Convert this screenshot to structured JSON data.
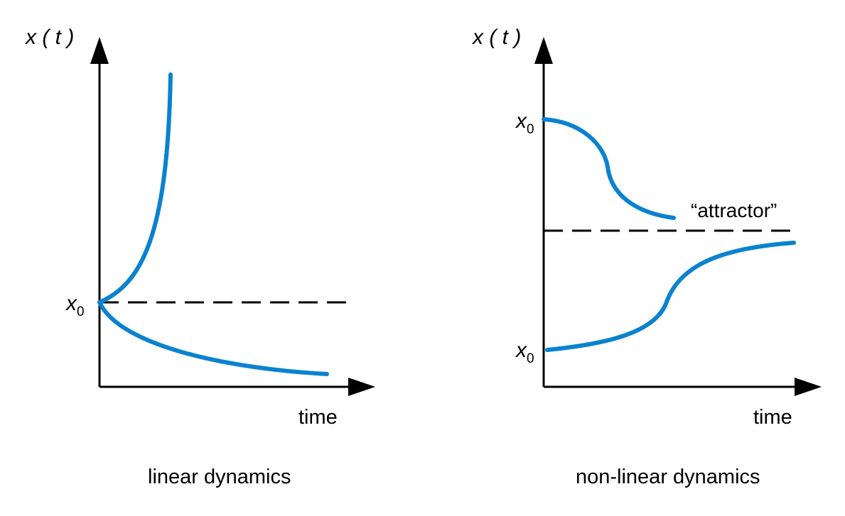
{
  "left_panel": {
    "y_axis_label": "x ( t )",
    "x0_var": "x",
    "x0_sub": "0",
    "x_axis_label": "time",
    "caption": "linear dynamics"
  },
  "right_panel": {
    "y_axis_label": "x ( t )",
    "x0_top_var": "x",
    "x0_top_sub": "0",
    "x0_bottom_var": "x",
    "x0_bottom_sub": "0",
    "attractor_label": "“attractor”",
    "x_axis_label": "time",
    "caption": "non-linear dynamics"
  },
  "colors": {
    "curve": "#0a82d0",
    "axis": "#000000"
  }
}
